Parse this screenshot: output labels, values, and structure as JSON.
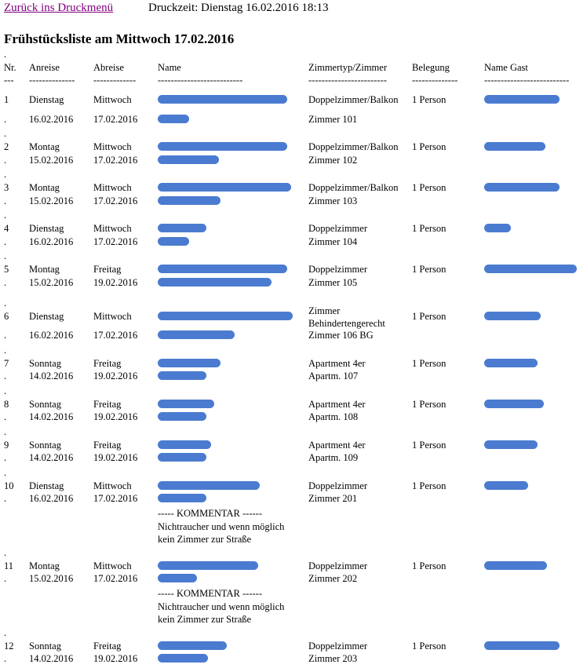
{
  "header": {
    "back_link": "Zurück ins Druckmenü",
    "print_time": "Druckzeit: Dienstag 16.02.2016 18:13"
  },
  "title": "Frühstücksliste am Mittwoch 17.02.2016",
  "dot": ".",
  "table": {
    "columns": [
      "Nr.",
      "Anreise",
      "Abreise",
      "Name",
      "Zimmertyp/Zimmer",
      "Belegung",
      "Name Gast"
    ],
    "rules": [
      "---",
      "--------------",
      "-------------",
      "--------------------------",
      "------------------------",
      "--------------",
      "--------------------------"
    ],
    "rows": [
      {
        "nr": "1",
        "arrival_day": "Dienstag",
        "departure_day": "Mittwoch",
        "room_type": "Doppelzimmer/Balkon",
        "occupancy": "1 Person",
        "arrival_date": "16.02.2016",
        "departure_date": "17.02.2016",
        "room": "Zimmer 101"
      },
      {
        "nr": "2",
        "arrival_day": "Montag",
        "departure_day": "Mittwoch",
        "room_type": "Doppelzimmer/Balkon",
        "occupancy": "1 Person",
        "arrival_date": "15.02.2016",
        "departure_date": "17.02.2016",
        "room": "Zimmer 102"
      },
      {
        "nr": "3",
        "arrival_day": "Montag",
        "departure_day": "Mittwoch",
        "room_type": "Doppelzimmer/Balkon",
        "occupancy": "1 Person",
        "arrival_date": "15.02.2016",
        "departure_date": "17.02.2016",
        "room": "Zimmer 103"
      },
      {
        "nr": "4",
        "arrival_day": "Dienstag",
        "departure_day": "Mittwoch",
        "room_type": "Doppelzimmer",
        "occupancy": "1 Person",
        "arrival_date": "16.02.2016",
        "departure_date": "17.02.2016",
        "room": "Zimmer 104"
      },
      {
        "nr": "5",
        "arrival_day": "Montag",
        "departure_day": "Freitag",
        "room_type": "Doppelzimmer",
        "occupancy": "1 Person",
        "arrival_date": "15.02.2016",
        "departure_date": "19.02.2016",
        "room": "Zimmer 105"
      },
      {
        "nr": "6",
        "arrival_day": "Dienstag",
        "departure_day": "Mittwoch",
        "room_type": "Zimmer Behindertengerecht",
        "occupancy": "1 Person",
        "arrival_date": "16.02.2016",
        "departure_date": "17.02.2016",
        "room": "Zimmer 106 BG"
      },
      {
        "nr": "7",
        "arrival_day": "Sonntag",
        "departure_day": "Freitag",
        "room_type": "Apartment 4er",
        "occupancy": "1 Person",
        "arrival_date": "14.02.2016",
        "departure_date": "19.02.2016",
        "room": "Apartm. 107"
      },
      {
        "nr": "8",
        "arrival_day": "Sonntag",
        "departure_day": "Freitag",
        "room_type": "Apartment 4er",
        "occupancy": "1 Person",
        "arrival_date": "14.02.2016",
        "departure_date": "19.02.2016",
        "room": "Apartm. 108"
      },
      {
        "nr": "9",
        "arrival_day": "Sonntag",
        "departure_day": "Freitag",
        "room_type": "Apartment 4er",
        "occupancy": "1 Person",
        "arrival_date": "14.02.2016",
        "departure_date": "19.02.2016",
        "room": "Apartm. 109"
      },
      {
        "nr": "10",
        "arrival_day": "Dienstag",
        "departure_day": "Mittwoch",
        "room_type": "Doppelzimmer",
        "occupancy": "1 Person",
        "arrival_date": "16.02.2016",
        "departure_date": "17.02.2016",
        "room": "Zimmer 201",
        "comment": {
          "heading": "----- KOMMENTAR ------",
          "lines": [
            "Nichtraucher und wenn möglich",
            "kein Zimmer zur Straße"
          ]
        }
      },
      {
        "nr": "11",
        "arrival_day": "Montag",
        "departure_day": "Mittwoch",
        "room_type": "Doppelzimmer",
        "occupancy": "1 Person",
        "arrival_date": "15.02.2016",
        "departure_date": "17.02.2016",
        "room": "Zimmer 202",
        "comment": {
          "heading": "----- KOMMENTAR ------",
          "lines": [
            "Nichtraucher und wenn möglich",
            "kein Zimmer zur Straße"
          ]
        }
      },
      {
        "nr": "12",
        "arrival_day": "Sonntag",
        "departure_day": "Freitag",
        "room_type": "Doppelzimmer",
        "occupancy": "1 Person",
        "arrival_date": "14.02.2016",
        "departure_date": "19.02.2016",
        "room": "Zimmer 203"
      }
    ]
  }
}
